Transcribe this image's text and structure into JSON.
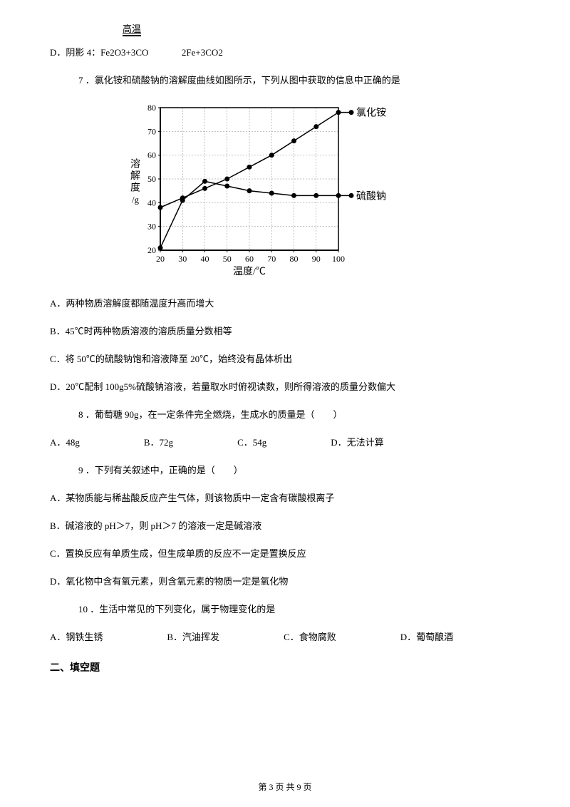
{
  "highTemp": "高温",
  "optionD_prefix": "D．阴影 4：Fe2O3+3CO",
  "optionD_suffix": "2Fe+3CO2",
  "q7": "7 ．氯化铵和硫酸钠的溶解度曲线如图所示，下列从图中获取的信息中正确的是",
  "chart": {
    "yLabel1": "溶",
    "yLabel2": "解",
    "yLabel3": "度",
    "yLabel4": "/g",
    "xLabel": "温度/℃",
    "label1": "氯化铵",
    "label2": "硫酸钠",
    "yTicks": [
      20,
      30,
      40,
      50,
      60,
      70,
      80
    ],
    "xTicks": [
      20,
      30,
      40,
      50,
      60,
      70,
      80,
      90,
      100
    ],
    "series1": {
      "x": [
        20,
        30,
        40,
        50,
        60,
        70,
        80,
        90,
        100
      ],
      "y": [
        38,
        42,
        46,
        50,
        55,
        60,
        66,
        72,
        78
      ],
      "color": "#000000"
    },
    "series2": {
      "x": [
        20,
        30,
        40,
        50,
        60,
        70,
        80,
        90,
        100
      ],
      "y": [
        21,
        41,
        49,
        47,
        45,
        44,
        43,
        43,
        43
      ],
      "color": "#000000"
    },
    "gridColor": "#000000",
    "bgColor": "#ffffff"
  },
  "q7_optA": "A．两种物质溶解度都随温度升高而增大",
  "q7_optB": "B．45℃时两种物质溶液的溶质质量分数相等",
  "q7_optC": "C．将 50℃的硫酸钠饱和溶液降至 20℃，始终没有晶体析出",
  "q7_optD": "D．20℃配制 100g5%硫酸钠溶液，若量取水时俯视读数，则所得溶液的质量分数偏大",
  "q8": "8 ．葡萄糖 90g，在一定条件完全燃烧，生成水的质量是（　　）",
  "q8_optA": "A．48g",
  "q8_optB": "B．72g",
  "q8_optC": "C．54g",
  "q8_optD": "D．无法计算",
  "q9": "9 ．下列有关叙述中，正确的是（　　）",
  "q9_optA": "A．某物质能与稀盐酸反应产生气体，则该物质中一定含有碳酸根离子",
  "q9_optB": "B．碱溶液的 pH＞7，则 pH＞7 的溶液一定是碱溶液",
  "q9_optC": "C．置换反应有单质生成，但生成单质的反应不一定是置换反应",
  "q9_optD": "D．氧化物中含有氧元素，则含氧元素的物质一定是氧化物",
  "q10": "10 ．生活中常见的下列变化，属于物理变化的是",
  "q10_optA": "A．钢铁生锈",
  "q10_optB": "B．汽油挥发",
  "q10_optC": "C．食物腐败",
  "q10_optD": "D．葡萄酿酒",
  "section2": "二、填空题",
  "footer": "第 3 页 共 9 页"
}
